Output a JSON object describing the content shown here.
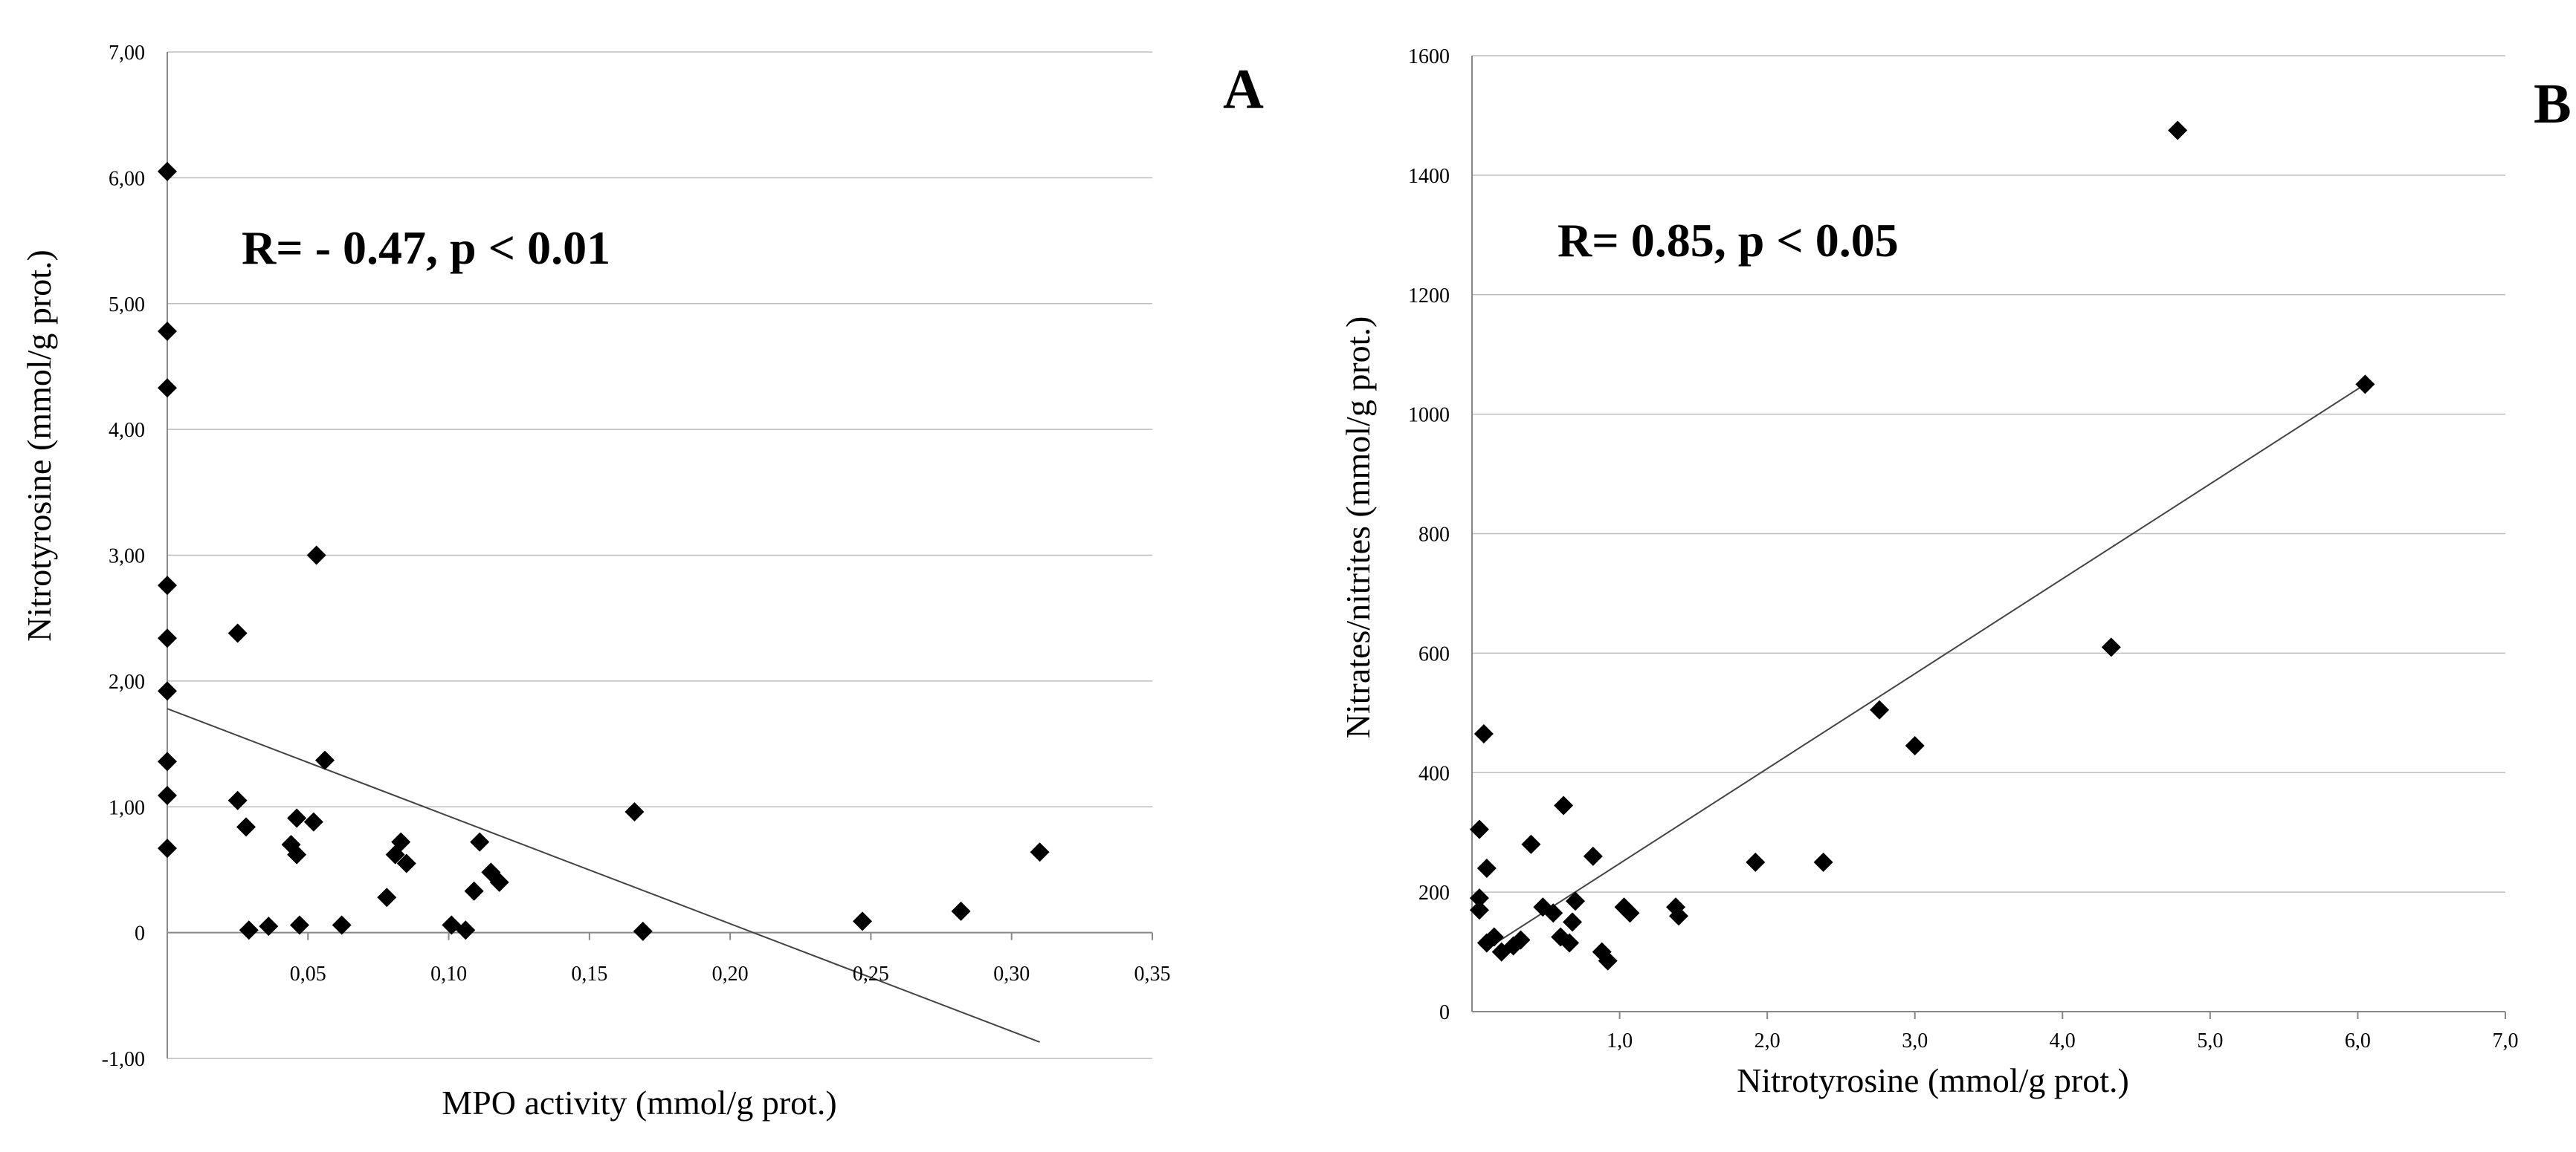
{
  "chart_data": [
    {
      "type": "scatter",
      "panel_label": "A",
      "annotation": "R= - 0.47,  p < 0.01",
      "xlabel": "MPO activity (mmol/g prot.)",
      "ylabel": "Nitrotyrosine (mmol/g prot.)",
      "xlim": [
        0,
        0.35
      ],
      "ylim": [
        -1,
        7
      ],
      "xticks": [
        0.05,
        0.1,
        0.15,
        0.2,
        0.25,
        0.3,
        0.35
      ],
      "xtick_labels": [
        "0,05",
        "0,10",
        "0,15",
        "0,20",
        "0,25",
        "0,30",
        "0,35"
      ],
      "yticks": [
        -1,
        0,
        1,
        2,
        3,
        4,
        5,
        6,
        7
      ],
      "ytick_labels": [
        "-1,00",
        "0",
        "1,00",
        "2,00",
        "3,00",
        "4,00",
        "5,00",
        "6,00",
        "7,00"
      ],
      "grid": true,
      "trendline": {
        "x": [
          0,
          0.31
        ],
        "y": [
          1.78,
          -0.87
        ]
      },
      "points": [
        [
          0,
          6.05
        ],
        [
          0,
          4.78
        ],
        [
          0,
          4.33
        ],
        [
          0,
          2.76
        ],
        [
          0,
          2.34
        ],
        [
          0,
          1.92
        ],
        [
          0,
          1.36
        ],
        [
          0,
          1.09
        ],
        [
          0,
          0.67
        ],
        [
          0.025,
          2.38
        ],
        [
          0.025,
          1.05
        ],
        [
          0.028,
          0.84
        ],
        [
          0.029,
          0.02
        ],
        [
          0.036,
          0.05
        ],
        [
          0.044,
          0.7
        ],
        [
          0.046,
          0.91
        ],
        [
          0.046,
          0.62
        ],
        [
          0.047,
          0.06
        ],
        [
          0.052,
          0.88
        ],
        [
          0.053,
          3.0
        ],
        [
          0.056,
          1.37
        ],
        [
          0.062,
          0.06
        ],
        [
          0.078,
          0.28
        ],
        [
          0.081,
          0.62
        ],
        [
          0.083,
          0.72
        ],
        [
          0.085,
          0.55
        ],
        [
          0.101,
          0.06
        ],
        [
          0.106,
          0.02
        ],
        [
          0.109,
          0.33
        ],
        [
          0.111,
          0.72
        ],
        [
          0.115,
          0.48
        ],
        [
          0.118,
          0.4
        ],
        [
          0.166,
          0.96
        ],
        [
          0.169,
          0.01
        ],
        [
          0.247,
          0.09
        ],
        [
          0.282,
          0.17
        ],
        [
          0.31,
          0.64
        ]
      ]
    },
    {
      "type": "scatter",
      "panel_label": "B",
      "annotation": "R= 0.85,  p < 0.05",
      "xlabel": "Nitrotyrosine (mmol/g prot.)",
      "ylabel": "Nitrates/nitrites (mmol/g prot.)",
      "xlim": [
        0,
        7
      ],
      "ylim": [
        0,
        1600
      ],
      "xticks": [
        1,
        2,
        3,
        4,
        5,
        6,
        7
      ],
      "xtick_labels": [
        "1,0",
        "2,0",
        "3,0",
        "4,0",
        "5,0",
        "6,0",
        "7,0"
      ],
      "yticks": [
        0,
        200,
        400,
        600,
        800,
        1000,
        1200,
        1400,
        1600
      ],
      "ytick_labels": [
        "0",
        "200",
        "400",
        "600",
        "800",
        "1000",
        "1200",
        "1400",
        "1600"
      ],
      "grid": true,
      "trendline": {
        "x": [
          0.1,
          6.05
        ],
        "y": [
          105,
          1050
        ]
      },
      "points": [
        [
          0.05,
          305
        ],
        [
          0.05,
          190
        ],
        [
          0.05,
          170
        ],
        [
          0.08,
          465
        ],
        [
          0.1,
          240
        ],
        [
          0.1,
          115
        ],
        [
          0.15,
          125
        ],
        [
          0.2,
          100
        ],
        [
          0.28,
          110
        ],
        [
          0.33,
          120
        ],
        [
          0.4,
          280
        ],
        [
          0.48,
          175
        ],
        [
          0.55,
          165
        ],
        [
          0.6,
          125
        ],
        [
          0.62,
          345
        ],
        [
          0.66,
          115
        ],
        [
          0.68,
          150
        ],
        [
          0.7,
          185
        ],
        [
          0.82,
          260
        ],
        [
          0.88,
          100
        ],
        [
          0.92,
          85
        ],
        [
          1.03,
          175
        ],
        [
          1.07,
          165
        ],
        [
          1.38,
          175
        ],
        [
          1.4,
          160
        ],
        [
          1.92,
          250
        ],
        [
          2.38,
          250
        ],
        [
          2.76,
          505
        ],
        [
          3.0,
          445
        ],
        [
          4.33,
          610
        ],
        [
          4.78,
          1475
        ],
        [
          6.05,
          1050
        ]
      ]
    }
  ]
}
